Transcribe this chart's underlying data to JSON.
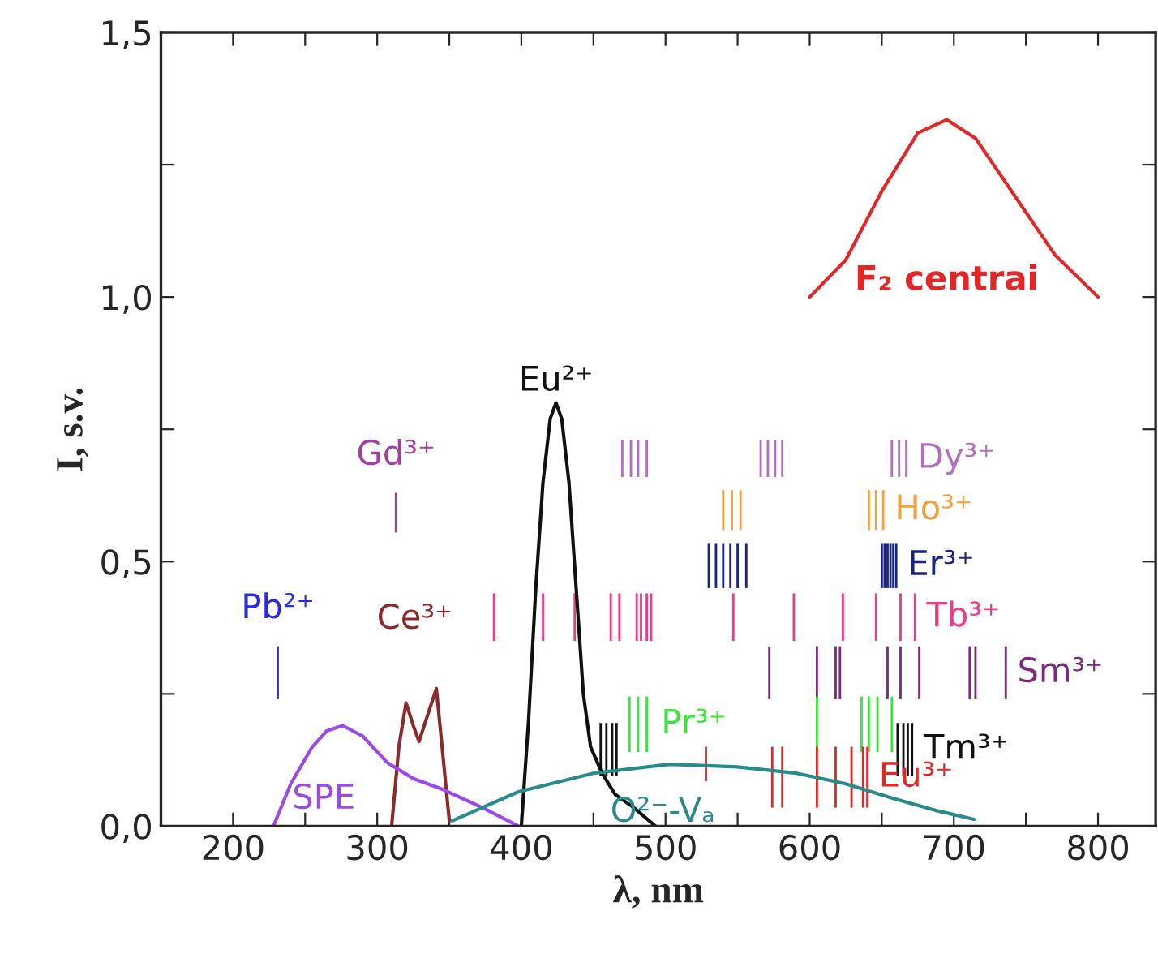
{
  "chart_data": {
    "type": "line",
    "xlabel": "λ, nm",
    "ylabel": "I, s.v.",
    "xlim": [
      150,
      840
    ],
    "ylim": [
      0,
      1.5
    ],
    "xticks": [
      200,
      {
        "value": 250,
        "label": null
      },
      300,
      {
        "value": 350,
        "label": null
      },
      400,
      {
        "value": 450,
        "label": null
      },
      500,
      {
        "value": 550,
        "label": null
      },
      600,
      {
        "value": 650,
        "label": null
      },
      700,
      {
        "value": 750,
        "label": null
      },
      800
    ],
    "yticks": [
      {
        "value": 0,
        "label": "0,0"
      },
      {
        "value": 0.25,
        "label": null
      },
      {
        "value": 0.5,
        "label": "0,5"
      },
      {
        "value": 0.75,
        "label": null
      },
      {
        "value": 1.0,
        "label": "1,0"
      },
      {
        "value": 1.25,
        "label": null
      },
      {
        "value": 1.5,
        "label": "1,5"
      }
    ],
    "grid": false,
    "legend": false,
    "series": [
      {
        "name": "F₂ centrai",
        "color": "#e02828",
        "x": [
          600,
          625,
          650,
          675,
          695,
          715,
          740,
          770,
          800
        ],
        "values": [
          1.0,
          1.07,
          1.2,
          1.31,
          1.335,
          1.3,
          1.2,
          1.08,
          1.0
        ]
      },
      {
        "name": "Eu²⁺",
        "color": "#111111",
        "x": [
          400,
          405,
          410,
          415,
          420,
          424,
          428,
          433,
          438,
          443,
          448,
          456,
          465,
          478,
          493
        ],
        "values": [
          0,
          0.2,
          0.45,
          0.65,
          0.77,
          0.8,
          0.77,
          0.65,
          0.45,
          0.25,
          0.15,
          0.1,
          0.06,
          0.035,
          0
        ]
      },
      {
        "name": "Ce³⁺",
        "color": "#8b2a2a",
        "x": [
          310,
          315,
          320,
          325,
          329,
          335,
          341,
          345,
          350
        ],
        "values": [
          0,
          0.15,
          0.233,
          0.19,
          0.16,
          0.21,
          0.26,
          0.15,
          0.01
        ]
      },
      {
        "name": "SPE",
        "color": "#9b4ae8",
        "x": [
          228,
          240,
          255,
          265,
          276,
          290,
          307,
          325,
          345,
          373,
          398
        ],
        "values": [
          0,
          0.08,
          0.15,
          0.18,
          0.19,
          0.17,
          0.12,
          0.09,
          0.07,
          0.035,
          0
        ]
      },
      {
        "name": "O²⁻-Vₐ",
        "color": "#2a8a8a",
        "x": [
          352,
          398,
          450,
          503,
          550,
          591,
          625,
          657,
          690,
          714
        ],
        "values": [
          0.01,
          0.065,
          0.1,
          0.117,
          0.112,
          0.1,
          0.08,
          0.053,
          0.028,
          0.013
        ]
      },
      {
        "name": "Gd³⁺",
        "type": "bar",
        "color": "#a040a0",
        "x": [
          313
        ],
        "base": [
          0.555
        ],
        "values": [
          0.075
        ]
      },
      {
        "name": "Dy³⁺",
        "type": "bar",
        "color": "#b070c0",
        "x": [
          470,
          476,
          481,
          487,
          566,
          571,
          576,
          581,
          657,
          662,
          667
        ],
        "base": [
          0.66,
          0.66,
          0.66,
          0.66,
          0.66,
          0.66,
          0.66,
          0.66,
          0.66,
          0.66,
          0.66
        ],
        "values": [
          0.07,
          0.07,
          0.07,
          0.07,
          0.07,
          0.07,
          0.07,
          0.07,
          0.07,
          0.07,
          0.07
        ]
      },
      {
        "name": "Ho³⁺",
        "type": "bar",
        "color": "#f0a040",
        "x": [
          540,
          546,
          552,
          641,
          646,
          651
        ],
        "base": [
          0.56,
          0.56,
          0.56,
          0.56,
          0.56,
          0.56
        ],
        "values": [
          0.075,
          0.075,
          0.075,
          0.075,
          0.075,
          0.075
        ]
      },
      {
        "name": "Er³⁺",
        "type": "bar",
        "color": "#1a237e",
        "x": [
          530,
          535,
          540,
          545,
          550,
          556,
          650,
          652,
          654,
          656,
          658,
          660
        ],
        "base": [
          0.45,
          0.45,
          0.45,
          0.45,
          0.45,
          0.45,
          0.45,
          0.45,
          0.45,
          0.45,
          0.45,
          0.45
        ],
        "values": [
          0.085,
          0.085,
          0.085,
          0.085,
          0.085,
          0.085,
          0.085,
          0.085,
          0.085,
          0.085,
          0.085,
          0.085
        ]
      },
      {
        "name": "Tb³⁺",
        "type": "bar",
        "color": "#ee3b86",
        "x": [
          381,
          415,
          437,
          462,
          468,
          480,
          483,
          487,
          490,
          547,
          589,
          623,
          646,
          663,
          673
        ],
        "base": [
          0.35,
          0.35,
          0.35,
          0.35,
          0.35,
          0.35,
          0.35,
          0.35,
          0.35,
          0.35,
          0.35,
          0.35,
          0.35,
          0.35,
          0.35
        ],
        "values": [
          0.09,
          0.09,
          0.09,
          0.09,
          0.09,
          0.09,
          0.09,
          0.09,
          0.09,
          0.09,
          0.09,
          0.09,
          0.09,
          0.09,
          0.09
        ]
      },
      {
        "name": "Sm³⁺",
        "type": "bar",
        "color": "#7b2a7b",
        "x": [
          572,
          605,
          618,
          621,
          654,
          663,
          676,
          711,
          715,
          736
        ],
        "base": [
          0.24,
          0.24,
          0.24,
          0.24,
          0.24,
          0.24,
          0.24,
          0.24,
          0.24,
          0.24
        ],
        "values": [
          0.1,
          0.1,
          0.1,
          0.1,
          0.1,
          0.1,
          0.1,
          0.1,
          0.1,
          0.1
        ]
      },
      {
        "name": "Pb²⁺",
        "type": "bar",
        "color": "#2a2ae0",
        "x": [
          231
        ],
        "base": [
          0.24
        ],
        "values": [
          0.1
        ]
      },
      {
        "name": "Pr³⁺",
        "type": "bar",
        "color": "#40e040",
        "x": [
          475,
          481,
          487,
          605,
          636,
          641,
          647,
          657
        ],
        "base": [
          0.14,
          0.14,
          0.14,
          0.14,
          0.14,
          0.14,
          0.14,
          0.14
        ],
        "values": [
          0.105,
          0.105,
          0.105,
          0.105,
          0.105,
          0.105,
          0.105,
          0.105
        ]
      },
      {
        "name": "Tm³⁺",
        "type": "bar",
        "color": "#111111",
        "x": [
          455,
          459,
          463,
          466,
          661,
          665,
          668,
          671
        ],
        "base": [
          0.095,
          0.095,
          0.095,
          0.095,
          0.095,
          0.095,
          0.095,
          0.095
        ],
        "values": [
          0.1,
          0.1,
          0.1,
          0.1,
          0.1,
          0.1,
          0.1,
          0.1
        ]
      },
      {
        "name": "Eu³⁺",
        "type": "bar",
        "color": "#e02828",
        "x": [
          528,
          574,
          581,
          605,
          618,
          629,
          637,
          640
        ],
        "base": [
          0.085,
          0.035,
          0.035,
          0.035,
          0.035,
          0.035,
          0.035,
          0.035
        ],
        "values": [
          0.065,
          0.115,
          0.115,
          0.115,
          0.115,
          0.115,
          0.115,
          0.115
        ]
      }
    ]
  }
}
